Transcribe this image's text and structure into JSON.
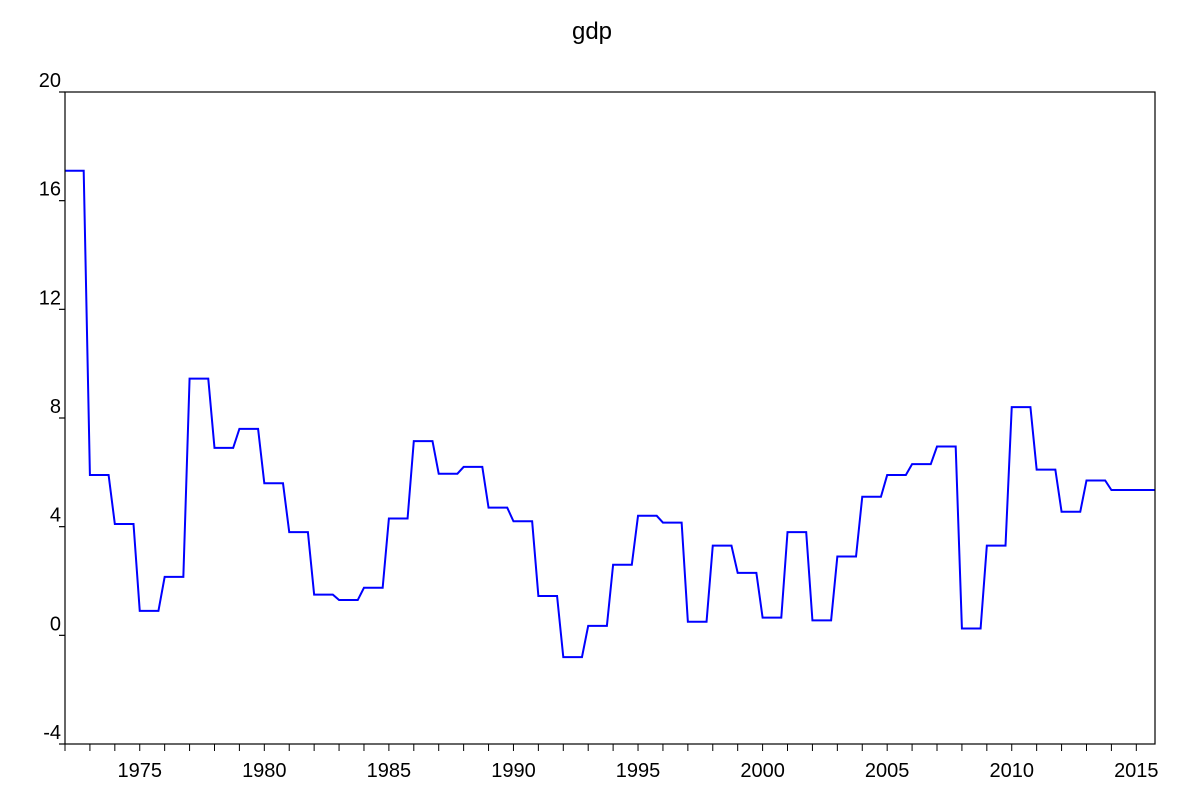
{
  "chart_data": {
    "type": "line",
    "title": "gdp",
    "xlabel": "",
    "ylabel": "",
    "x_ticks": [
      "1975",
      "1980",
      "1985",
      "1990",
      "1995",
      "2000",
      "2005",
      "2010",
      "2015"
    ],
    "y_ticks": [
      "-4",
      "0",
      "4",
      "8",
      "12",
      "16",
      "20"
    ],
    "xlim": [
      1972.0,
      2015.75
    ],
    "ylim": [
      -4,
      20
    ],
    "grid": false,
    "legend": "none",
    "frequency": "quarterly",
    "series": [
      {
        "color": "#0000ff",
        "annual": [
          {
            "year": 1972,
            "value": 17.1
          },
          {
            "year": 1973,
            "value": 5.9
          },
          {
            "year": 1974,
            "value": 4.1
          },
          {
            "year": 1975,
            "value": 0.9
          },
          {
            "year": 1976,
            "value": 2.15
          },
          {
            "year": 1977,
            "value": 9.45
          },
          {
            "year": 1978,
            "value": 6.9
          },
          {
            "year": 1979,
            "value": 7.6
          },
          {
            "year": 1980,
            "value": 5.6
          },
          {
            "year": 1981,
            "value": 3.8
          },
          {
            "year": 1982,
            "value": 1.5
          },
          {
            "year": 1983,
            "value": 1.3
          },
          {
            "year": 1984,
            "value": 1.75
          },
          {
            "year": 1985,
            "value": 4.3
          },
          {
            "year": 1986,
            "value": 7.15
          },
          {
            "year": 1987,
            "value": 5.95
          },
          {
            "year": 1988,
            "value": 6.2
          },
          {
            "year": 1989,
            "value": 4.7
          },
          {
            "year": 1990,
            "value": 4.2
          },
          {
            "year": 1991,
            "value": 1.45
          },
          {
            "year": 1992,
            "value": -0.8
          },
          {
            "year": 1993,
            "value": 0.35
          },
          {
            "year": 1994,
            "value": 2.6
          },
          {
            "year": 1995,
            "value": 4.4
          },
          {
            "year": 1996,
            "value": 4.15
          },
          {
            "year": 1997,
            "value": 0.5
          },
          {
            "year": 1998,
            "value": 3.3
          },
          {
            "year": 1999,
            "value": 2.3
          },
          {
            "year": 2000,
            "value": 0.65
          },
          {
            "year": 2001,
            "value": 3.8
          },
          {
            "year": 2002,
            "value": 0.55
          },
          {
            "year": 2003,
            "value": 2.9
          },
          {
            "year": 2004,
            "value": 5.1
          },
          {
            "year": 2005,
            "value": 5.9
          },
          {
            "year": 2006,
            "value": 6.3
          },
          {
            "year": 2007,
            "value": 6.95
          },
          {
            "year": 2008,
            "value": 0.25
          },
          {
            "year": 2009,
            "value": 3.3
          },
          {
            "year": 2010,
            "value": 8.4
          },
          {
            "year": 2011,
            "value": 6.1
          },
          {
            "year": 2012,
            "value": 4.55
          },
          {
            "year": 2013,
            "value": 5.7
          },
          {
            "year": 2014,
            "value": 5.35
          },
          {
            "year": 2015,
            "value": 5.35
          }
        ]
      }
    ]
  }
}
